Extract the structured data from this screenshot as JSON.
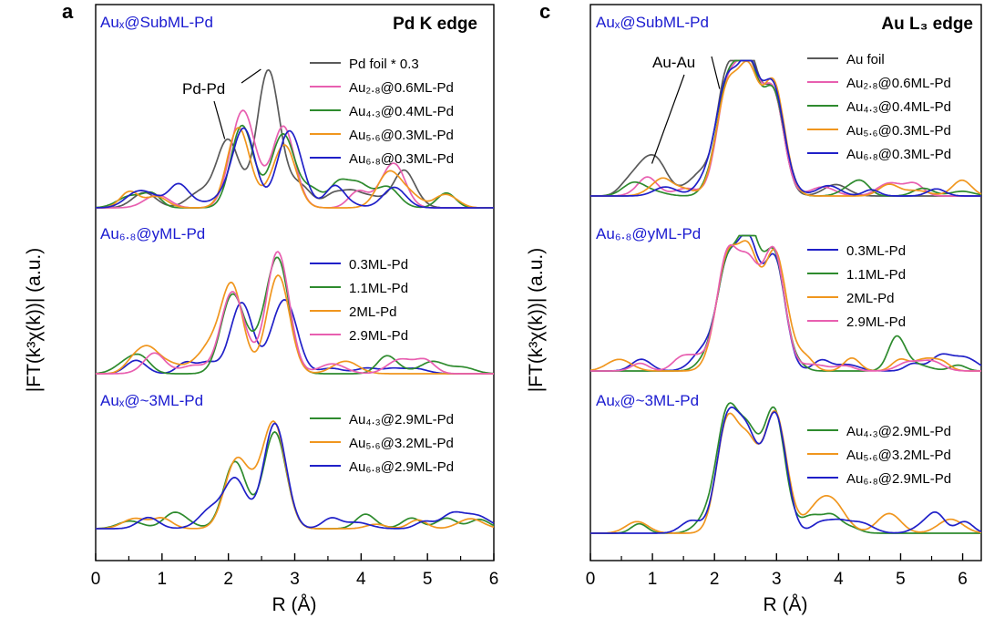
{
  "figure": {
    "shared_ylabel": "|FT(k³χ(k))| (a.u.)",
    "shared_xlabel": "R (Å)"
  },
  "chart_data": [
    {
      "panel_letter": "a",
      "type": "line",
      "edge_label": "Pd K edge",
      "xlabel": "R (Å)",
      "ylabel": "|FT(k³χ(k))| (a.u.)",
      "xlim": [
        0,
        6
      ],
      "xticks": [
        "0",
        "1",
        "2",
        "3",
        "4",
        "5",
        "6"
      ],
      "groups": [
        {
          "title": "Auₓ@SubML-Pd",
          "annotation": "Pd-Pd",
          "series": [
            {
              "name": "Pd foil * 0.3",
              "color": "#5a5a5a",
              "peaks": [
                [
                  2.0,
                  0.45
                ],
                [
                  2.6,
                  1.0
                ],
                [
                  3.1,
                  0.12
                ],
                [
                  4.6,
                  0.14
                ]
              ]
            },
            {
              "name": "Au₂.₈@0.6ML-Pd",
              "color": "#e85fb0",
              "peaks": [
                [
                  2.22,
                  0.54
                ],
                [
                  2.85,
                  0.48
                ],
                [
                  4.4,
                  0.14
                ]
              ]
            },
            {
              "name": "Au₄.₃@0.4ML-Pd",
              "color": "#2e8b2e",
              "peaks": [
                [
                  2.22,
                  0.52
                ],
                [
                  2.85,
                  0.44
                ],
                [
                  4.4,
                  0.15
                ]
              ]
            },
            {
              "name": "Au₅.₆@0.3ML-Pd",
              "color": "#f0961e",
              "peaks": [
                [
                  2.15,
                  0.48
                ],
                [
                  2.85,
                  0.45
                ],
                [
                  4.4,
                  0.13
                ]
              ]
            },
            {
              "name": "Au₆.₈@0.3ML-Pd",
              "color": "#2020c8",
              "peaks": [
                [
                  2.22,
                  0.54
                ],
                [
                  2.9,
                  0.52
                ],
                [
                  4.5,
                  0.15
                ]
              ]
            }
          ]
        },
        {
          "title": "Au₆.₈@yML-Pd",
          "series": [
            {
              "name": "0.3ML-Pd",
              "color": "#2020c8",
              "peaks": [
                [
                  2.2,
                  0.65
                ],
                [
                  2.85,
                  0.56
                ]
              ]
            },
            {
              "name": "1.1ML-Pd",
              "color": "#2e8b2e",
              "peaks": [
                [
                  2.05,
                  0.68
                ],
                [
                  2.75,
                  1.0
                ]
              ]
            },
            {
              "name": "2ML-Pd",
              "color": "#f0961e",
              "peaks": [
                [
                  2.05,
                  0.72
                ],
                [
                  2.75,
                  0.9
                ]
              ]
            },
            {
              "name": "2.9ML-Pd",
              "color": "#e85fb0",
              "peaks": [
                [
                  2.05,
                  0.72
                ],
                [
                  2.75,
                  1.08
                ]
              ]
            }
          ]
        },
        {
          "title": "Auₓ@~3ML-Pd",
          "series": [
            {
              "name": "Au₄.₃@2.9ML-Pd",
              "color": "#2e8b2e",
              "peaks": [
                [
                  2.1,
                  0.7
                ],
                [
                  2.7,
                  0.95
                ]
              ]
            },
            {
              "name": "Au₅.₆@3.2ML-Pd",
              "color": "#f0961e",
              "peaks": [
                [
                  2.1,
                  0.6
                ],
                [
                  2.7,
                  1.0
                ]
              ]
            },
            {
              "name": "Au₆.₈@2.9ML-Pd",
              "color": "#2020c8",
              "peaks": [
                [
                  2.1,
                  0.52
                ],
                [
                  2.7,
                  1.1
                ]
              ]
            }
          ]
        }
      ]
    },
    {
      "panel_letter": "c",
      "type": "line",
      "edge_label": "Au L₃ edge",
      "xlabel": "R (Å)",
      "ylabel": "|FT(k³χ(k))| (a.u.)",
      "xlim": [
        0,
        6.3
      ],
      "xticks": [
        "0",
        "1",
        "2",
        "3",
        "4",
        "5",
        "6"
      ],
      "groups": [
        {
          "title": "Auₓ@SubML-Pd",
          "annotation": "Au-Au",
          "series": [
            {
              "name": "Au foil",
              "color": "#5a5a5a",
              "peaks": [
                [
                  1.05,
                  0.25
                ],
                [
                  2.2,
                  1.05
                ],
                [
                  2.55,
                  1.3
                ],
                [
                  2.95,
                  1.0
                ]
              ]
            },
            {
              "name": "Au₂.₈@0.6ML-Pd",
              "color": "#e85fb0",
              "peaks": [
                [
                  2.2,
                  1.0
                ],
                [
                  2.55,
                  1.15
                ],
                [
                  2.95,
                  1.0
                ]
              ]
            },
            {
              "name": "Au₄.₃@0.4ML-Pd",
              "color": "#2e8b2e",
              "peaks": [
                [
                  2.2,
                  1.0
                ],
                [
                  2.55,
                  1.2
                ],
                [
                  2.95,
                  1.0
                ]
              ]
            },
            {
              "name": "Au₅.₆@0.3ML-Pd",
              "color": "#f0961e",
              "peaks": [
                [
                  2.2,
                  1.0
                ],
                [
                  2.55,
                  1.15
                ],
                [
                  2.95,
                  1.02
                ]
              ]
            },
            {
              "name": "Au₆.₈@0.3ML-Pd",
              "color": "#2020c8",
              "peaks": [
                [
                  2.2,
                  1.0
                ],
                [
                  2.55,
                  1.2
                ],
                [
                  2.95,
                  1.02
                ]
              ]
            }
          ]
        },
        {
          "title": "Au₆.₈@yML-Pd",
          "series": [
            {
              "name": "0.3ML-Pd",
              "color": "#2020c8",
              "peaks": [
                [
                  2.2,
                  1.0
                ],
                [
                  2.55,
                  1.2
                ],
                [
                  2.97,
                  1.1
                ]
              ]
            },
            {
              "name": "1.1ML-Pd",
              "color": "#2e8b2e",
              "peaks": [
                [
                  2.2,
                  1.0
                ],
                [
                  2.55,
                  1.15
                ],
                [
                  2.97,
                  1.1
                ]
              ]
            },
            {
              "name": "2ML-Pd",
              "color": "#f0961e",
              "peaks": [
                [
                  2.2,
                  1.05
                ],
                [
                  2.55,
                  1.1
                ],
                [
                  2.97,
                  1.1
                ]
              ]
            },
            {
              "name": "2.9ML-Pd",
              "color": "#e85fb0",
              "peaks": [
                [
                  2.2,
                  1.1
                ],
                [
                  2.55,
                  0.95
                ],
                [
                  2.97,
                  1.1
                ]
              ]
            }
          ]
        },
        {
          "title": "Auₓ@~3ML-Pd",
          "series": [
            {
              "name": "Au₄.₃@2.9ML-Pd",
              "color": "#2e8b2e",
              "peaks": [
                [
                  2.2,
                  1.0
                ],
                [
                  2.55,
                  0.78
                ],
                [
                  2.97,
                  1.05
                ]
              ]
            },
            {
              "name": "Au₅.₆@3.2ML-Pd",
              "color": "#f0961e",
              "peaks": [
                [
                  2.2,
                  0.98
                ],
                [
                  2.55,
                  0.75
                ],
                [
                  2.97,
                  1.04
                ]
              ]
            },
            {
              "name": "Au₆.₈@2.9ML-Pd",
              "color": "#2020c8",
              "peaks": [
                [
                  2.2,
                  0.98
                ],
                [
                  2.55,
                  0.72
                ],
                [
                  2.97,
                  1.03
                ]
              ]
            }
          ]
        }
      ]
    }
  ]
}
